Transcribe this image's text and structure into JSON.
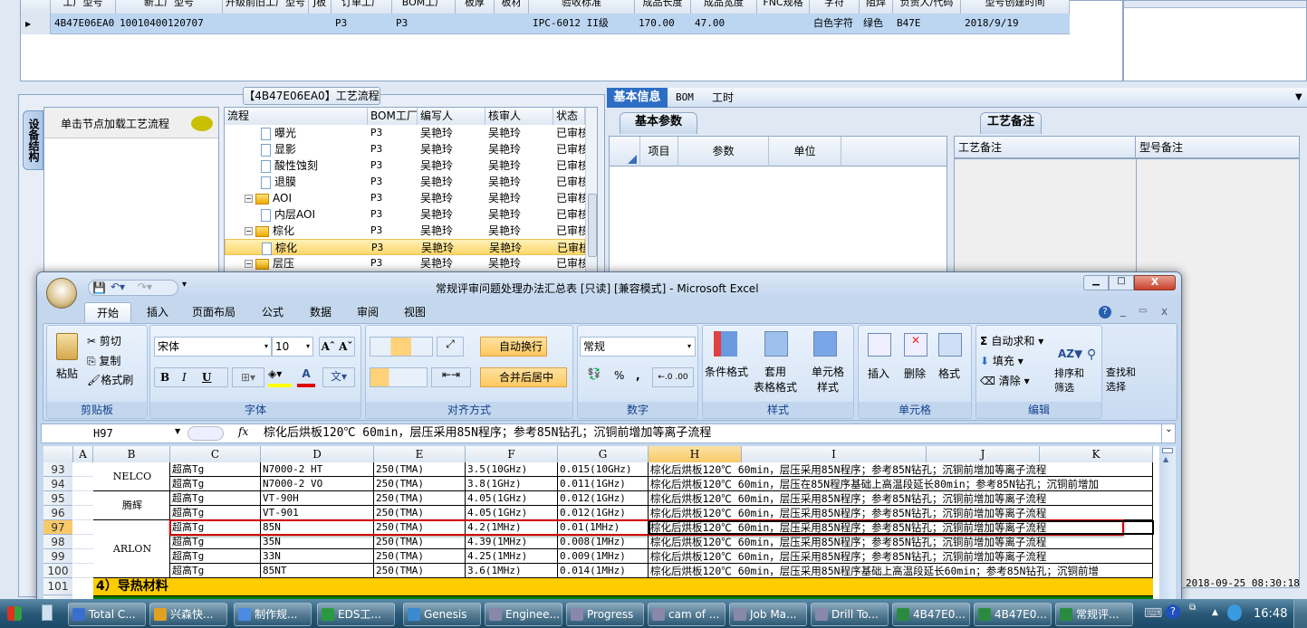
{
  "top_grid": {
    "headers": [
      "工厂型号",
      "新工厂型号",
      "升级前旧工厂型号",
      "J板",
      "订单工厂",
      "BOM工厂",
      "板厚",
      "板材",
      "验收标准",
      "成品长度",
      "成品宽度",
      "FNC规格",
      "字符",
      "阻焊",
      "负责人/代码",
      "型号创建时间"
    ],
    "row": [
      "4B47E06EA0",
      "10010400120707",
      "",
      "",
      "P3",
      "P3",
      "",
      "",
      "IPC-6012 II级",
      "170.00",
      "47.00",
      "",
      "白色字符",
      "绿色",
      "B47E",
      "2018/9/19"
    ]
  },
  "process_panel": {
    "title": "【4B47E06EA0】工艺流程",
    "side_tab": "设备结构",
    "load_hint": "单击节点加载工艺流程",
    "columns": [
      "流程",
      "BOM工厂",
      "编写人",
      "核审人",
      "状态"
    ],
    "rows": [
      {
        "name": "曝光",
        "level": 2,
        "type": "doc",
        "bom": "P3",
        "author": "吴艳玲",
        "reviewer": "吴艳玲",
        "status": "已审核"
      },
      {
        "name": "显影",
        "level": 2,
        "type": "doc",
        "bom": "P3",
        "author": "吴艳玲",
        "reviewer": "吴艳玲",
        "status": "已审核"
      },
      {
        "name": "酸性蚀刻",
        "level": 2,
        "type": "doc",
        "bom": "P3",
        "author": "吴艳玲",
        "reviewer": "吴艳玲",
        "status": "已审核"
      },
      {
        "name": "退膜",
        "level": 2,
        "type": "doc",
        "bom": "P3",
        "author": "吴艳玲",
        "reviewer": "吴艳玲",
        "status": "已审核"
      },
      {
        "name": "AOI",
        "level": 1,
        "type": "folder",
        "bom": "P3",
        "author": "吴艳玲",
        "reviewer": "吴艳玲",
        "status": "已审核"
      },
      {
        "name": "内层AOI",
        "level": 2,
        "type": "doc",
        "bom": "P3",
        "author": "吴艳玲",
        "reviewer": "吴艳玲",
        "status": "已审核"
      },
      {
        "name": "棕化",
        "level": 1,
        "type": "folder",
        "bom": "P3",
        "author": "吴艳玲",
        "reviewer": "吴艳玲",
        "status": "已审核"
      },
      {
        "name": "棕化",
        "level": 2,
        "type": "doc",
        "bom": "P3",
        "author": "吴艳玲",
        "reviewer": "吴艳玲",
        "status": "已审核",
        "selected": true
      },
      {
        "name": "层压",
        "level": 1,
        "type": "folder",
        "bom": "P3",
        "author": "吴艳玲",
        "reviewer": "吴艳玲",
        "status": "已审核"
      }
    ]
  },
  "info_panel": {
    "tabs": [
      "基本信息",
      "BOM",
      "工时"
    ],
    "active_tab": "基本信息",
    "basic_params": {
      "title": "基本参数",
      "columns": [
        "项目",
        "参数",
        "单位"
      ]
    },
    "remarks": {
      "title": "工艺备注",
      "columns": [
        "工艺备注",
        "型号备注"
      ]
    },
    "timestamp": "2018-09-25 08:30:18"
  },
  "excel": {
    "title": "常规评审问题处理办法汇总表  [只读]  [兼容模式] - Microsoft Excel",
    "ribbon_tabs": [
      "开始",
      "插入",
      "页面布局",
      "公式",
      "数据",
      "审阅",
      "视图"
    ],
    "active_tab": "开始",
    "clipboard": {
      "paste": "粘贴",
      "cut": "剪切",
      "copy": "复制",
      "format_painter": "格式刷",
      "label": "剪贴板"
    },
    "font": {
      "name": "宋体",
      "size": "10",
      "label": "字体",
      "bold": "B",
      "italic": "I",
      "underline": "U"
    },
    "alignment": {
      "wrap": "自动换行",
      "merge": "合并后居中",
      "label": "对齐方式"
    },
    "number": {
      "format": "常规",
      "label": "数字",
      "percent": "%",
      "comma": ","
    },
    "styles": {
      "conditional": "条件格式",
      "table": "套用\n表格格式",
      "cell": "单元格\n样式",
      "label": "样式"
    },
    "cells": {
      "insert": "插入",
      "delete": "删除",
      "format": "格式",
      "label": "单元格"
    },
    "editing": {
      "autosum": "自动求和",
      "fill": "填充",
      "clear": "清除",
      "sort": "排序和\n筛选",
      "find": "查找和\n选择",
      "label": "编辑"
    },
    "name_box": "H97",
    "formula": "棕化后烘板120℃ 60min，层压采用85N程序；参考85N钻孔；沉铜前增加等离子流程",
    "columns": [
      "A",
      "B",
      "C",
      "D",
      "E",
      "F",
      "G",
      "H",
      "I",
      "J",
      "K"
    ],
    "active_column": "H",
    "rows": [
      {
        "num": "93",
        "C": "超高Tg",
        "D": "N7000-2 HT",
        "E": "250(TMA)",
        "F": "3.5(10GHz)",
        "G": "0.015(10GHz)",
        "H": "棕化后烘板120℃ 60min，层压采用85N程序；参考85N钻孔；沉铜前增加等离子流程"
      },
      {
        "num": "94",
        "C": "超高Tg",
        "D": "N7000-2 VO",
        "E": "250(TMA)",
        "F": "3.8(1GHz)",
        "G": "0.011(1GHz)",
        "H": "棕化后烘板120℃ 60min，层压在85N程序基础上高温段延长80min；参考85N钻孔；沉铜前增加"
      },
      {
        "num": "95",
        "C": "超高Tg",
        "D": "VT-90H",
        "E": "250(TMA)",
        "F": "4.05(1GHz)",
        "G": "0.012(1GHz)",
        "H": "棕化后烘板120℃ 60min，层压采用85N程序；参考85N钻孔；沉铜前增加等离子流程"
      },
      {
        "num": "96",
        "C": "超高Tg",
        "D": "VT-901",
        "E": "250(TMA)",
        "F": "4.05(1GHz)",
        "G": "0.012(1GHz)",
        "H": "棕化后烘板120℃ 60min，层压采用85N程序；参考85N钻孔；沉铜前增加等离子流程"
      },
      {
        "num": "97",
        "C": "超高Tg",
        "D": "85N",
        "E": "250(TMA)",
        "F": "4.2(1MHz)",
        "G": "0.01(1MHz)",
        "H": "棕化后烘板120℃ 60min，层压采用85N程序；参考85N钻孔；沉铜前增加等离子流程",
        "active": true
      },
      {
        "num": "98",
        "C": "超高Tg",
        "D": "35N",
        "E": "250(TMA)",
        "F": "4.39(1MHz)",
        "G": "0.008(1MHz)",
        "H": "棕化后烘板120℃ 60min，层压采用85N程序；参考85N钻孔；沉铜前增加等离子流程"
      },
      {
        "num": "99",
        "C": "超高Tg",
        "D": "33N",
        "E": "250(TMA)",
        "F": "4.25(1MHz)",
        "G": "0.009(1MHz)",
        "H": "棕化后烘板120℃ 60min，层压采用85N程序；参考85N钻孔；沉铜前增加等离子流程"
      },
      {
        "num": "100",
        "C": "超高Tg",
        "D": "85NT",
        "E": "250(TMA)",
        "F": "3.6(1MHz)",
        "G": "0.014(1MHz)",
        "H": "棕化后烘板120℃ 60min，层压采用85N程序基础上高温段延长60min；参考85N钻孔；沉铜前增"
      }
    ],
    "manufacturers": [
      {
        "name": "NELCO",
        "rows": 2
      },
      {
        "name": "腾辉",
        "rows": 2
      },
      {
        "name": "ARLON",
        "rows": 4
      }
    ],
    "section_row": {
      "num": "101",
      "text": "4）导热材料"
    },
    "colors": {
      "section": "#ffcc00",
      "header_green": "#008000",
      "highlight": "#d00000"
    }
  },
  "taskbar": {
    "items": [
      "Total C...",
      "兴森快...",
      "制作规...",
      "EDS工...",
      "Genesis",
      "Enginee...",
      "Progress",
      "cam of ...",
      "Job Ma...",
      "Drill To...",
      "4B47E0...",
      "4B47E0...",
      "常规评..."
    ],
    "clock": "16:48"
  }
}
